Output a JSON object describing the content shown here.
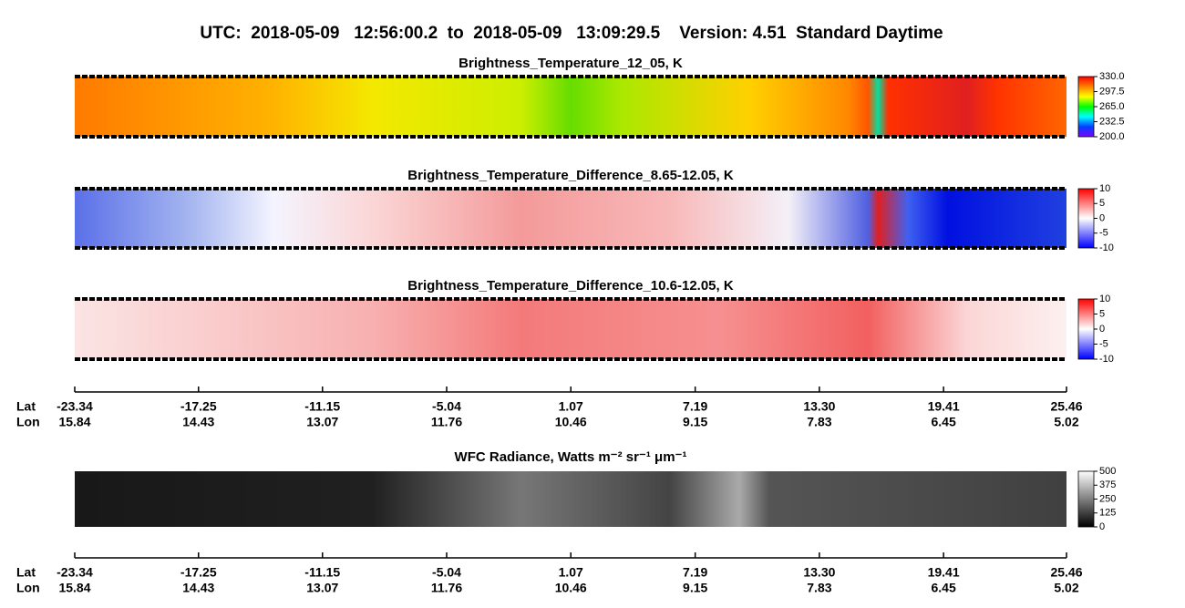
{
  "title": "UTC:  2018-05-09   12:56:00.2  to  2018-05-09   13:09:29.5    Version: 4.51  Standard Daytime",
  "x_axis": {
    "xlabel": "Lat",
    "x2label": "Lon",
    "xlim": [
      -23.34,
      25.46
    ],
    "xticks": [
      -23.34,
      -17.25,
      -11.15,
      -5.04,
      1.07,
      7.19,
      {
        "value": 13.3,
        "label": "13.30"
      },
      19.41,
      25.46
    ],
    "lon_labels": [
      "15.84",
      "14.43",
      "13.07",
      "11.76",
      "10.46",
      "9.15",
      "7.83",
      "6.45",
      "5.02"
    ]
  },
  "chart_data": [
    {
      "type": "heatmap",
      "title": "Brightness_Temperature_12_05, K",
      "clim": [
        200,
        330
      ],
      "cticks": [
        {
          "value": 330,
          "label": "330.0"
        },
        297.5,
        {
          "value": 265,
          "label": "265.0"
        },
        232.5,
        {
          "value": 200,
          "label": "200.0"
        }
      ],
      "colors": [
        "#8000ff",
        "#0040ff",
        "#00ffff",
        "#00ff00",
        "#ffff00",
        "#ff8000",
        "#ff0000"
      ]
    },
    {
      "type": "heatmap",
      "title": "Brightness_Temperature_Difference_8.65-12.05, K",
      "clim": [
        -10,
        10
      ],
      "cticks": [
        10,
        5,
        0,
        -5,
        -10
      ],
      "colors": [
        "#0000ff",
        "#ffffff",
        "#ff0000"
      ]
    },
    {
      "type": "heatmap",
      "title": "Brightness_Temperature_Difference_10.6-12.05, K",
      "clim": [
        -10,
        10
      ],
      "cticks": [
        10,
        5,
        0,
        -5,
        -10
      ],
      "colors": [
        "#0000ff",
        "#ffffff",
        "#ff0000"
      ]
    },
    {
      "type": "heatmap",
      "title": "WFC Radiance, Watts m⁻² sr⁻¹ μm⁻¹",
      "clim": [
        0,
        500
      ],
      "cticks": [
        500,
        375,
        250,
        125,
        0
      ],
      "colors": [
        "#000000",
        "#ffffff"
      ]
    }
  ]
}
